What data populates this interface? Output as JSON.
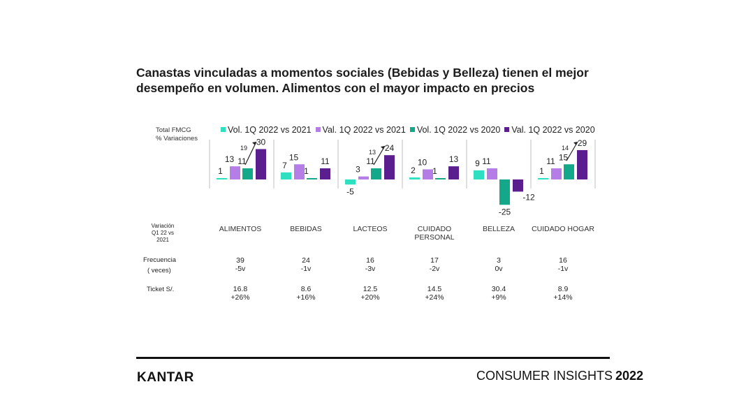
{
  "title_line1": "Canastas vinculadas a momentos sociales (Bebidas y Belleza) tienen el mejor",
  "title_line2": "desempeño en volumen. Alimentos con el mayor impacto en precios",
  "left_label_line1": "Total FMCG",
  "left_label_line2": "% Variaciones",
  "variation_label_line1": "Variación",
  "variation_label_line2": "Q1 22 vs 2021",
  "frequency_label": "Frecuencia",
  "frequency_sub": "( veces)",
  "ticket_label": "Ticket S/.",
  "colors": {
    "vol_2021": "#2ee0c0",
    "val_2021": "#b57ee6",
    "vol_2020": "#14a88a",
    "val_2020": "#5b1e8e"
  },
  "chart_data": {
    "type": "bar",
    "categories": [
      "ALIMENTOS",
      "BEBIDAS",
      "LACTEOS",
      "CUIDADO PERSONAL",
      "BELLEZA",
      "CUIDADO HOGAR"
    ],
    "series": [
      {
        "name": "Vol. 1Q 2022 vs 2021",
        "values": [
          1,
          7,
          -5,
          2,
          9,
          1
        ]
      },
      {
        "name": "Val. 1Q 2022 vs 2021",
        "values": [
          13,
          15,
          3,
          10,
          11,
          11
        ]
      },
      {
        "name": "Vol. 1Q 2022 vs 2020",
        "values": [
          11,
          1,
          11,
          1,
          -25,
          15
        ]
      },
      {
        "name": "Val. 1Q 2022 vs 2020",
        "values": [
          30,
          11,
          24,
          13,
          -12,
          29
        ]
      }
    ],
    "annotations": [
      {
        "category": "ALIMENTOS",
        "text": "19"
      },
      {
        "category": "LACTEOS",
        "text": "13"
      },
      {
        "category": "CUIDADO HOGAR",
        "text": "14"
      }
    ],
    "legend_position": "top",
    "grid": false
  },
  "categories_display": [
    {
      "line1": "ALIMENTOS",
      "line2": ""
    },
    {
      "line1": "BEBIDAS",
      "line2": ""
    },
    {
      "line1": "LACTEOS",
      "line2": ""
    },
    {
      "line1": "CUIDADO",
      "line2": "PERSONAL"
    },
    {
      "line1": "BELLEZA",
      "line2": ""
    },
    {
      "line1": "CUIDADO HOGAR",
      "line2": ""
    }
  ],
  "frequency": [
    {
      "value": "39",
      "change": "-5v"
    },
    {
      "value": "24",
      "change": "-1v"
    },
    {
      "value": "16",
      "change": "-3v"
    },
    {
      "value": "17",
      "change": "-2v"
    },
    {
      "value": "3",
      "change": "0v"
    },
    {
      "value": "16",
      "change": "-1v"
    }
  ],
  "ticket": [
    {
      "value": "16.8",
      "change": "+26%"
    },
    {
      "value": "8.6",
      "change": "+16%"
    },
    {
      "value": "12.5",
      "change": "+20%"
    },
    {
      "value": "14.5",
      "change": "+24%"
    },
    {
      "value": "30.4",
      "change": "+9%"
    },
    {
      "value": "8.9",
      "change": "+14%"
    }
  ],
  "footer": {
    "brand": "KANTAR",
    "consumer_insights": "CONSUMER INSIGHTS",
    "year": "2022"
  }
}
